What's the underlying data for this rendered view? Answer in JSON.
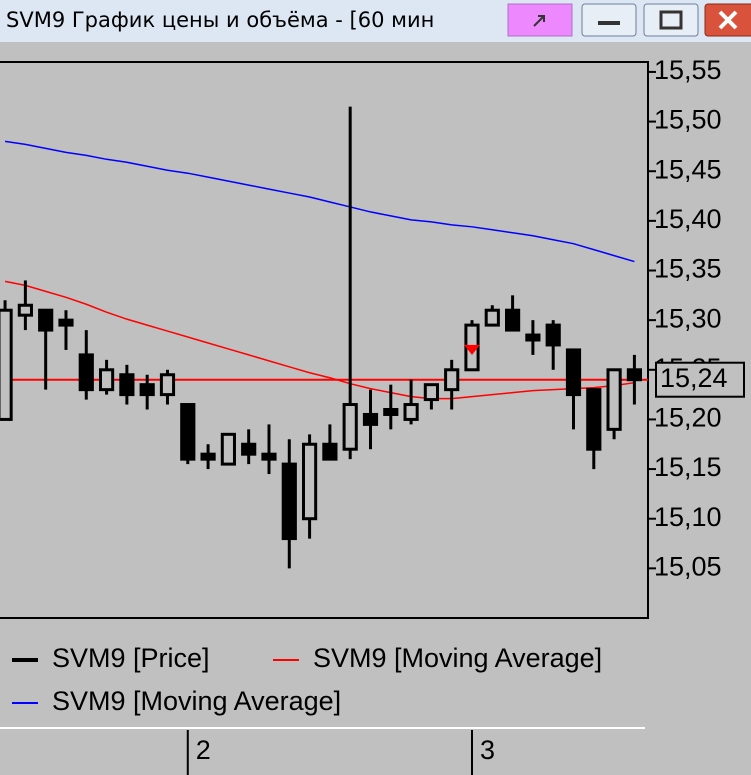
{
  "window": {
    "title": "SVM9 График цены и объёма - [60 мин"
  },
  "chart_data": {
    "type": "candlestick",
    "x": [
      0,
      1,
      2,
      3,
      4,
      5,
      6,
      7,
      8,
      9,
      10,
      11,
      12,
      13,
      14,
      15,
      16,
      17,
      18,
      19,
      20,
      21,
      22,
      23,
      24,
      25,
      26,
      27,
      28,
      29,
      30,
      31
    ],
    "xlim": [
      -0.25,
      31.67
    ],
    "xticks": [
      {
        "value": 9,
        "label": "2"
      },
      {
        "value": 23,
        "label": "3"
      }
    ],
    "ylim": [
      15.0,
      15.56
    ],
    "yticks": [
      {
        "value": 15.05,
        "label": "15,05"
      },
      {
        "value": 15.1,
        "label": "15,10"
      },
      {
        "value": 15.15,
        "label": "15,15"
      },
      {
        "value": 15.2,
        "label": "15,20"
      },
      {
        "value": 15.25,
        "label": "15,25"
      },
      {
        "value": 15.3,
        "label": "15,30"
      },
      {
        "value": 15.35,
        "label": "15,35"
      },
      {
        "value": 15.4,
        "label": "15,40"
      },
      {
        "value": 15.45,
        "label": "15,45"
      },
      {
        "value": 15.5,
        "label": "15,50"
      },
      {
        "value": 15.55,
        "label": "15,55"
      }
    ],
    "candles": {
      "name": "SVM9 [Price]",
      "color": "#000000",
      "open": [
        15.2,
        15.305,
        15.31,
        15.3,
        15.265,
        15.23,
        15.245,
        15.235,
        15.225,
        15.215,
        15.165,
        15.155,
        15.175,
        15.165,
        15.155,
        15.1,
        15.175,
        15.17,
        15.205,
        15.21,
        15.2,
        15.22,
        15.23,
        15.25,
        15.295,
        15.31,
        15.285,
        15.295,
        15.27,
        15.23,
        15.19,
        15.25
      ],
      "high": [
        15.32,
        15.34,
        15.31,
        15.31,
        15.29,
        15.26,
        15.255,
        15.245,
        15.25,
        15.215,
        15.175,
        15.185,
        15.19,
        15.195,
        15.18,
        15.185,
        15.195,
        15.515,
        15.23,
        15.235,
        15.24,
        15.235,
        15.26,
        15.3,
        15.315,
        15.325,
        15.3,
        15.3,
        15.27,
        15.23,
        15.25,
        15.265
      ],
      "low": [
        15.2,
        15.29,
        15.23,
        15.27,
        15.22,
        15.225,
        15.215,
        15.21,
        15.215,
        15.155,
        15.15,
        15.155,
        15.155,
        15.145,
        15.05,
        15.08,
        15.16,
        15.16,
        15.17,
        15.19,
        15.195,
        15.21,
        15.21,
        15.25,
        15.295,
        15.29,
        15.265,
        15.25,
        15.19,
        15.15,
        15.18,
        15.215
      ],
      "close": [
        15.31,
        15.315,
        15.29,
        15.295,
        15.23,
        15.25,
        15.225,
        15.225,
        15.245,
        15.16,
        15.16,
        15.185,
        15.165,
        15.16,
        15.08,
        15.175,
        15.16,
        15.215,
        15.195,
        15.205,
        15.215,
        15.235,
        15.25,
        15.295,
        15.31,
        15.29,
        15.28,
        15.275,
        15.225,
        15.17,
        15.25,
        15.24
      ]
    },
    "lines": [
      {
        "name": "SVM9 [Moving Average]",
        "color": "#ff0000",
        "values": [
          15.339,
          15.335,
          15.329,
          15.323,
          15.316,
          15.308,
          15.301,
          15.295,
          15.289,
          15.283,
          15.277,
          15.271,
          15.265,
          15.259,
          15.253,
          15.247,
          15.242,
          15.236,
          15.231,
          15.227,
          15.223,
          15.221,
          15.221,
          15.223,
          15.225,
          15.227,
          15.229,
          15.23,
          15.231,
          15.232,
          15.234,
          15.237
        ]
      },
      {
        "name": "SVM9 [Moving Average]",
        "color": "#0000ff",
        "values": [
          15.48,
          15.477,
          15.473,
          15.469,
          15.466,
          15.462,
          15.459,
          15.455,
          15.451,
          15.448,
          15.444,
          15.44,
          15.436,
          15.432,
          15.428,
          15.424,
          15.419,
          15.414,
          15.409,
          15.405,
          15.401,
          15.399,
          15.396,
          15.394,
          15.391,
          15.388,
          15.385,
          15.381,
          15.377,
          15.371,
          15.365,
          15.359
        ]
      }
    ],
    "last_price": {
      "value": 15.24,
      "label": "15,24",
      "color": "#ff0000"
    },
    "markers": [
      {
        "x": 23,
        "value": 15.27,
        "color": "#ff0000"
      }
    ]
  }
}
